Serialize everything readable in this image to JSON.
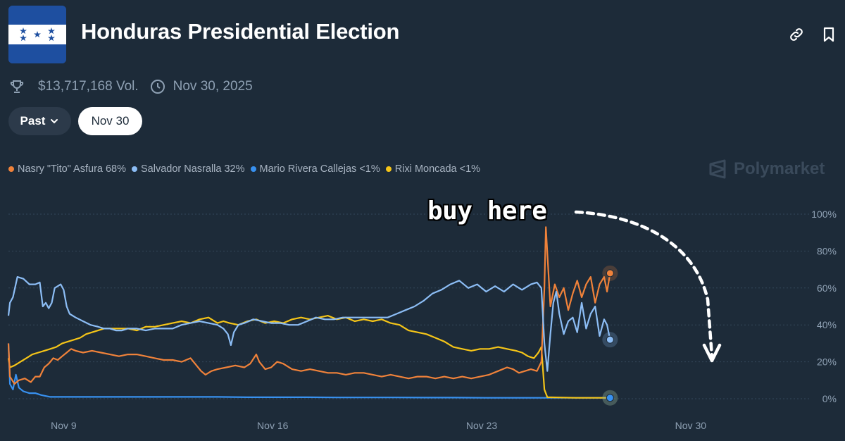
{
  "header": {
    "title": "Honduras Presidential Election",
    "volume": "$13,717,168 Vol.",
    "end_date": "Nov 30, 2025",
    "icons": [
      "link-icon",
      "bookmark-icon",
      "trophy-icon",
      "clock-icon"
    ]
  },
  "filters": {
    "past_label": "Past",
    "date_label": "Nov 30"
  },
  "brand": {
    "name": "Polymarket"
  },
  "annotation": {
    "text": "buy here"
  },
  "colors": {
    "background": "#1d2b39",
    "asfura": "#f0823a",
    "nasralla": "#8cbdf5",
    "rivera": "#3891f0",
    "moncada": "#f5c518"
  },
  "chart_data": {
    "type": "line",
    "x_tick_labels": [
      "Nov 9",
      "Nov 16",
      "Nov 23",
      "Nov 30"
    ],
    "y_tick_labels": [
      "100%",
      "80%",
      "60%",
      "40%",
      "20%",
      "0%"
    ],
    "ylim": [
      0,
      100
    ],
    "grid": true,
    "legend_position": "top-left",
    "series": [
      {
        "name": "Nasry \"Tito\" Asfura",
        "legend_label": "Nasry \"Tito\" Asfura 68%",
        "color": "#f0823a",
        "current": 68,
        "values": [
          [
            0,
            30
          ],
          [
            0.05,
            12
          ],
          [
            0.2,
            8
          ],
          [
            0.35,
            10
          ],
          [
            0.55,
            11
          ],
          [
            0.75,
            9
          ],
          [
            0.9,
            12
          ],
          [
            1.05,
            12
          ],
          [
            1.2,
            17
          ],
          [
            1.35,
            19
          ],
          [
            1.5,
            22
          ],
          [
            1.65,
            21
          ],
          [
            1.8,
            23
          ],
          [
            1.95,
            25
          ],
          [
            2.1,
            27
          ],
          [
            2.25,
            26
          ],
          [
            2.5,
            25
          ],
          [
            2.8,
            26
          ],
          [
            3.1,
            25
          ],
          [
            3.4,
            24
          ],
          [
            3.7,
            23
          ],
          [
            4.0,
            24
          ],
          [
            4.3,
            24
          ],
          [
            4.6,
            23
          ],
          [
            4.9,
            22
          ],
          [
            5.2,
            21
          ],
          [
            5.5,
            21
          ],
          [
            5.8,
            20
          ],
          [
            6.1,
            22
          ],
          [
            6.3,
            18
          ],
          [
            6.45,
            15
          ],
          [
            6.6,
            13
          ],
          [
            6.8,
            15
          ],
          [
            7.0,
            16
          ],
          [
            7.3,
            17
          ],
          [
            7.6,
            18
          ],
          [
            7.9,
            17
          ],
          [
            8.1,
            19
          ],
          [
            8.3,
            24
          ],
          [
            8.4,
            20
          ],
          [
            8.6,
            16
          ],
          [
            8.8,
            17
          ],
          [
            9.0,
            20
          ],
          [
            9.2,
            19
          ],
          [
            9.5,
            16
          ],
          [
            9.8,
            15
          ],
          [
            10.1,
            16
          ],
          [
            10.4,
            15
          ],
          [
            10.7,
            14
          ],
          [
            11.0,
            14
          ],
          [
            11.3,
            13
          ],
          [
            11.6,
            14
          ],
          [
            11.9,
            14
          ],
          [
            12.2,
            13
          ],
          [
            12.5,
            12
          ],
          [
            12.8,
            13
          ],
          [
            13.1,
            12
          ],
          [
            13.4,
            11
          ],
          [
            13.7,
            12
          ],
          [
            14.0,
            12
          ],
          [
            14.3,
            11
          ],
          [
            14.6,
            12
          ],
          [
            14.9,
            11
          ],
          [
            15.2,
            12
          ],
          [
            15.5,
            11
          ],
          [
            15.8,
            12
          ],
          [
            16.1,
            13
          ],
          [
            16.4,
            15
          ],
          [
            16.7,
            17
          ],
          [
            16.9,
            16
          ],
          [
            17.1,
            14
          ],
          [
            17.3,
            15
          ],
          [
            17.5,
            16
          ],
          [
            17.7,
            15
          ],
          [
            17.85,
            20
          ],
          [
            17.95,
            60
          ],
          [
            18.0,
            93
          ],
          [
            18.08,
            70
          ],
          [
            18.15,
            50
          ],
          [
            18.3,
            62
          ],
          [
            18.45,
            55
          ],
          [
            18.6,
            60
          ],
          [
            18.75,
            48
          ],
          [
            18.9,
            57
          ],
          [
            19.05,
            64
          ],
          [
            19.2,
            55
          ],
          [
            19.35,
            62
          ],
          [
            19.5,
            66
          ],
          [
            19.65,
            52
          ],
          [
            19.8,
            62
          ],
          [
            19.95,
            66
          ],
          [
            20.05,
            58
          ],
          [
            20.15,
            68
          ]
        ]
      },
      {
        "name": "Salvador Nasralla",
        "legend_label": "Salvador Nasralla 32%",
        "color": "#8cbdf5",
        "current": 32,
        "values": [
          [
            0,
            45
          ],
          [
            0.05,
            52
          ],
          [
            0.15,
            55
          ],
          [
            0.3,
            66
          ],
          [
            0.5,
            65
          ],
          [
            0.7,
            62
          ],
          [
            0.9,
            62
          ],
          [
            1.05,
            63
          ],
          [
            1.15,
            50
          ],
          [
            1.25,
            52
          ],
          [
            1.35,
            49
          ],
          [
            1.45,
            52
          ],
          [
            1.55,
            60
          ],
          [
            1.65,
            61
          ],
          [
            1.75,
            62
          ],
          [
            1.85,
            59
          ],
          [
            1.95,
            50
          ],
          [
            2.05,
            46
          ],
          [
            2.25,
            44
          ],
          [
            2.5,
            42
          ],
          [
            2.75,
            40
          ],
          [
            3.0,
            39
          ],
          [
            3.2,
            38
          ],
          [
            3.4,
            38
          ],
          [
            3.6,
            37
          ],
          [
            3.8,
            37
          ],
          [
            4.0,
            38
          ],
          [
            4.3,
            38
          ],
          [
            4.6,
            37
          ],
          [
            4.9,
            38
          ],
          [
            5.2,
            38
          ],
          [
            5.5,
            38
          ],
          [
            5.8,
            40
          ],
          [
            6.1,
            41
          ],
          [
            6.4,
            42
          ],
          [
            6.7,
            41
          ],
          [
            7.0,
            40
          ],
          [
            7.2,
            38
          ],
          [
            7.35,
            35
          ],
          [
            7.45,
            29
          ],
          [
            7.55,
            36
          ],
          [
            7.7,
            40
          ],
          [
            7.9,
            41
          ],
          [
            8.2,
            43
          ],
          [
            8.5,
            42
          ],
          [
            8.8,
            41
          ],
          [
            9.1,
            41
          ],
          [
            9.4,
            40
          ],
          [
            9.7,
            40
          ],
          [
            10.0,
            42
          ],
          [
            10.3,
            44
          ],
          [
            10.6,
            43
          ],
          [
            10.9,
            43
          ],
          [
            11.2,
            44
          ],
          [
            11.5,
            44
          ],
          [
            11.8,
            44
          ],
          [
            12.1,
            44
          ],
          [
            12.4,
            44
          ],
          [
            12.7,
            44
          ],
          [
            13.0,
            46
          ],
          [
            13.3,
            48
          ],
          [
            13.6,
            50
          ],
          [
            13.9,
            53
          ],
          [
            14.2,
            57
          ],
          [
            14.5,
            59
          ],
          [
            14.8,
            62
          ],
          [
            15.1,
            64
          ],
          [
            15.4,
            60
          ],
          [
            15.7,
            62
          ],
          [
            16.0,
            58
          ],
          [
            16.3,
            61
          ],
          [
            16.6,
            58
          ],
          [
            16.9,
            62
          ],
          [
            17.2,
            59
          ],
          [
            17.5,
            62
          ],
          [
            17.7,
            63
          ],
          [
            17.85,
            60
          ],
          [
            17.95,
            30
          ],
          [
            18.05,
            15
          ],
          [
            18.15,
            35
          ],
          [
            18.25,
            52
          ],
          [
            18.35,
            58
          ],
          [
            18.45,
            46
          ],
          [
            18.6,
            35
          ],
          [
            18.75,
            42
          ],
          [
            18.9,
            44
          ],
          [
            19.05,
            36
          ],
          [
            19.2,
            52
          ],
          [
            19.35,
            38
          ],
          [
            19.5,
            46
          ],
          [
            19.65,
            50
          ],
          [
            19.8,
            34
          ],
          [
            19.95,
            43
          ],
          [
            20.05,
            40
          ],
          [
            20.15,
            32
          ]
        ]
      },
      {
        "name": "Mario Rivera Callejas",
        "legend_label": "Mario Rivera Callejas <1%",
        "color": "#3891f0",
        "current": 0.5,
        "values": [
          [
            0,
            30
          ],
          [
            0.05,
            8
          ],
          [
            0.15,
            5
          ],
          [
            0.25,
            13
          ],
          [
            0.35,
            6
          ],
          [
            0.5,
            4
          ],
          [
            0.7,
            3
          ],
          [
            0.9,
            3
          ],
          [
            1.1,
            2
          ],
          [
            1.4,
            1
          ],
          [
            2,
            1
          ],
          [
            3,
            1
          ],
          [
            4,
            1
          ],
          [
            5,
            1
          ],
          [
            6,
            1
          ],
          [
            7,
            1
          ],
          [
            8,
            0.8
          ],
          [
            9,
            0.8
          ],
          [
            10,
            0.8
          ],
          [
            11,
            0.7
          ],
          [
            12,
            0.7
          ],
          [
            13,
            0.7
          ],
          [
            14,
            0.6
          ],
          [
            15,
            0.6
          ],
          [
            16,
            0.5
          ],
          [
            17,
            0.5
          ],
          [
            18,
            0.5
          ],
          [
            19,
            0.5
          ],
          [
            20.15,
            0.5
          ]
        ]
      },
      {
        "name": "Rixi Moncada",
        "legend_label": "Rixi Moncada <1%",
        "color": "#f5c518",
        "current": 0.5,
        "values": [
          [
            0,
            22
          ],
          [
            0.05,
            17
          ],
          [
            0.2,
            18
          ],
          [
            0.4,
            20
          ],
          [
            0.6,
            22
          ],
          [
            0.8,
            24
          ],
          [
            1.0,
            25
          ],
          [
            1.2,
            26
          ],
          [
            1.4,
            27
          ],
          [
            1.6,
            28
          ],
          [
            1.8,
            30
          ],
          [
            2.0,
            31
          ],
          [
            2.2,
            32
          ],
          [
            2.4,
            33
          ],
          [
            2.6,
            35
          ],
          [
            2.8,
            36
          ],
          [
            3.0,
            37
          ],
          [
            3.2,
            38
          ],
          [
            3.5,
            38
          ],
          [
            3.8,
            38
          ],
          [
            4.0,
            38
          ],
          [
            4.3,
            37
          ],
          [
            4.6,
            39
          ],
          [
            4.9,
            39
          ],
          [
            5.2,
            40
          ],
          [
            5.5,
            41
          ],
          [
            5.8,
            42
          ],
          [
            6.1,
            41
          ],
          [
            6.4,
            43
          ],
          [
            6.7,
            44
          ],
          [
            7.0,
            41
          ],
          [
            7.2,
            42
          ],
          [
            7.4,
            41
          ],
          [
            7.7,
            40
          ],
          [
            8.0,
            42
          ],
          [
            8.3,
            43
          ],
          [
            8.6,
            41
          ],
          [
            8.9,
            42
          ],
          [
            9.2,
            41
          ],
          [
            9.5,
            43
          ],
          [
            9.8,
            44
          ],
          [
            10.1,
            43
          ],
          [
            10.4,
            44
          ],
          [
            10.7,
            45
          ],
          [
            11.0,
            43
          ],
          [
            11.3,
            44
          ],
          [
            11.6,
            42
          ],
          [
            11.9,
            43
          ],
          [
            12.2,
            42
          ],
          [
            12.5,
            43
          ],
          [
            12.8,
            41
          ],
          [
            13.1,
            40
          ],
          [
            13.4,
            37
          ],
          [
            13.7,
            36
          ],
          [
            14.0,
            35
          ],
          [
            14.3,
            33
          ],
          [
            14.6,
            31
          ],
          [
            14.9,
            28
          ],
          [
            15.2,
            27
          ],
          [
            15.5,
            26
          ],
          [
            15.8,
            27
          ],
          [
            16.1,
            27
          ],
          [
            16.4,
            28
          ],
          [
            16.7,
            27
          ],
          [
            17.0,
            26
          ],
          [
            17.2,
            25
          ],
          [
            17.4,
            23
          ],
          [
            17.6,
            22
          ],
          [
            17.75,
            25
          ],
          [
            17.85,
            28
          ],
          [
            17.95,
            5
          ],
          [
            18.05,
            0.8
          ],
          [
            19,
            0.5
          ],
          [
            20.15,
            0.5
          ]
        ]
      }
    ]
  }
}
